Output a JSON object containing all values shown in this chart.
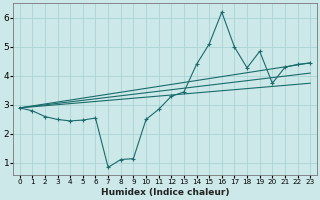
{
  "xlabel": "Humidex (Indice chaleur)",
  "bg_color": "#cce8e8",
  "line_color": "#1a6b6b",
  "grid_color": "#aad4d4",
  "xlim": [
    -0.5,
    23.5
  ],
  "ylim": [
    0.6,
    6.5
  ],
  "xticks": [
    0,
    1,
    2,
    3,
    4,
    5,
    6,
    7,
    8,
    9,
    10,
    11,
    12,
    13,
    14,
    15,
    16,
    17,
    18,
    19,
    20,
    21,
    22,
    23
  ],
  "yticks": [
    1,
    2,
    3,
    4,
    5,
    6
  ],
  "series": [
    {
      "x": [
        0,
        1,
        2,
        3,
        4,
        5,
        6,
        7,
        8,
        9,
        10,
        11,
        12,
        13,
        14,
        15,
        16,
        17,
        18,
        19,
        20,
        21,
        22,
        23
      ],
      "y": [
        2.9,
        2.8,
        2.6,
        2.5,
        2.45,
        2.48,
        2.55,
        0.85,
        1.12,
        1.15,
        2.5,
        2.85,
        3.3,
        3.45,
        4.4,
        5.1,
        6.2,
        5.0,
        4.28,
        4.85,
        3.75,
        4.3,
        4.4,
        4.45
      ]
    },
    {
      "x": [
        0,
        23
      ],
      "y": [
        2.9,
        4.45
      ]
    },
    {
      "x": [
        0,
        23
      ],
      "y": [
        2.9,
        4.1
      ]
    },
    {
      "x": [
        0,
        23
      ],
      "y": [
        2.9,
        3.75
      ]
    }
  ]
}
